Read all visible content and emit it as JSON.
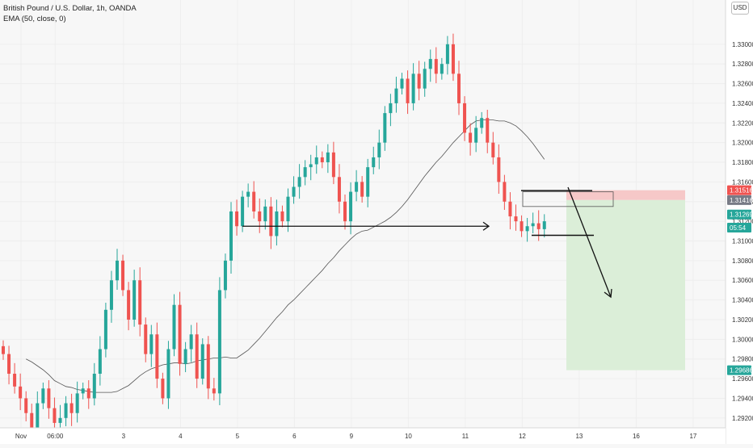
{
  "header": {
    "symbol_line": "British Pound / U.S. Dollar, 1h, OANDA",
    "indicator_line": "EMA (50, close, 0)",
    "currency_badge": "USD"
  },
  "chart_data": {
    "type": "candlestick",
    "y_axis": {
      "range": [
        1.291,
        1.3345
      ],
      "ticks": [
        "1.29200",
        "1.29400",
        "1.29600",
        "1.29800",
        "1.30000",
        "1.30200",
        "1.30400",
        "1.30600",
        "1.30800",
        "1.31000",
        "1.31200",
        "1.31400",
        "1.31600",
        "1.31800",
        "1.32000",
        "1.32200",
        "1.32400",
        "1.32600",
        "1.32800",
        "1.33000"
      ],
      "tick_values": [
        1.292,
        1.294,
        1.296,
        1.298,
        1.3,
        1.302,
        1.304,
        1.306,
        1.308,
        1.31,
        1.312,
        1.314,
        1.316,
        1.318,
        1.32,
        1.322,
        1.324,
        1.326,
        1.328,
        1.33
      ]
    },
    "x_axis": {
      "ticks": [
        "Nov",
        "06:00",
        "3",
        "4",
        "5",
        "6",
        "9",
        "10",
        "11",
        "12",
        "13",
        "16",
        "17"
      ],
      "tick_bar_index": [
        0,
        6,
        18,
        28,
        38,
        48,
        58,
        68,
        78,
        88,
        98,
        108,
        118
      ]
    },
    "price_labels": [
      {
        "text": "1.31516",
        "value": 1.31516,
        "color": "#f05350"
      },
      {
        "text": "1.31416",
        "value": 1.31416,
        "color": "#787b86"
      },
      {
        "text": "1.31269",
        "value": 1.31269,
        "color": "#26a69a"
      },
      {
        "text": "05:54",
        "value": 1.31135,
        "color": "#26a69a"
      },
      {
        "text": "1.29686",
        "value": 1.29686,
        "color": "#26a69a"
      }
    ],
    "closes": [
      1.2985,
      1.2965,
      1.2952,
      1.294,
      1.2925,
      1.291,
      1.2935,
      1.295,
      1.293,
      1.2915,
      1.292,
      1.2935,
      1.2925,
      1.2945,
      1.295,
      1.294,
      1.2965,
      1.299,
      1.303,
      1.306,
      1.308,
      1.305,
      1.302,
      1.306,
      1.3015,
      1.2985,
      1.3005,
      1.296,
      1.294,
      1.299,
      1.3035,
      1.2975,
      1.299,
      1.3005,
      1.296,
      1.2995,
      1.295,
      1.2945,
      1.305,
      1.308,
      1.313,
      1.3115,
      1.3145,
      1.315,
      1.313,
      1.312,
      1.3135,
      1.3105,
      1.313,
      1.312,
      1.3145,
      1.3155,
      1.3165,
      1.3175,
      1.3178,
      1.3185,
      1.318,
      1.319,
      1.3165,
      1.314,
      1.312,
      1.315,
      1.316,
      1.3145,
      1.3175,
      1.3185,
      1.32,
      1.323,
      1.324,
      1.3255,
      1.3265,
      1.324,
      1.327,
      1.3255,
      1.3275,
      1.3285,
      1.327,
      1.328,
      1.33,
      1.327,
      1.324,
      1.321,
      1.32,
      1.3215,
      1.3225,
      1.32,
      1.3185,
      1.316,
      1.314,
      1.3125,
      1.312,
      1.311,
      1.3115,
      1.3118,
      1.3112,
      1.312
    ],
    "ema_50": [
      1.298,
      1.2977,
      1.2973,
      1.2969,
      1.2964,
      1.2958,
      1.2955,
      1.2952,
      1.2951,
      1.2949,
      1.2948,
      1.2947,
      1.2946,
      1.2946,
      1.2946,
      1.2946,
      1.2947,
      1.295,
      1.2953,
      1.2958,
      1.2963,
      1.2967,
      1.297,
      1.2972,
      1.2974,
      1.2975,
      1.2976,
      1.2976,
      1.2975,
      1.2976,
      1.2978,
      1.2979,
      1.298,
      1.2981,
      1.2981,
      1.2982,
      1.2981,
      1.2981,
      1.2985,
      1.2989,
      1.2995,
      1.3001,
      1.3008,
      1.3015,
      1.3022,
      1.3028,
      1.3035,
      1.304,
      1.3046,
      1.3052,
      1.3058,
      1.3064,
      1.307,
      1.3077,
      1.3083,
      1.309,
      1.3096,
      1.3102,
      1.3107,
      1.311,
      1.3111,
      1.3114,
      1.3117,
      1.312,
      1.3124,
      1.3129,
      1.3135,
      1.3142,
      1.315,
      1.3158,
      1.3166,
      1.3173,
      1.318,
      1.3186,
      1.3193,
      1.32,
      1.3206,
      1.3212,
      1.3218,
      1.3222,
      1.3223,
      1.3223,
      1.3223,
      1.3222,
      1.3222,
      1.322,
      1.3217,
      1.3212,
      1.3206,
      1.3199,
      1.3191,
      1.3183
    ],
    "up_color": "#26a69a",
    "down_color": "#ef5350",
    "drawings": {
      "support_line_level": 1.3115,
      "resistance_line_level": 1.3152,
      "low_line_level": 1.3109,
      "sell_entry": 1.31416,
      "stop_loss": 1.31516,
      "take_profit": 1.29686
    }
  },
  "colors": {
    "background": "#f7f7f7",
    "axis_text": "#333333",
    "ema": "#555555",
    "stop_zone": "#f6c8c8",
    "target_zone": "#dbeed8"
  }
}
